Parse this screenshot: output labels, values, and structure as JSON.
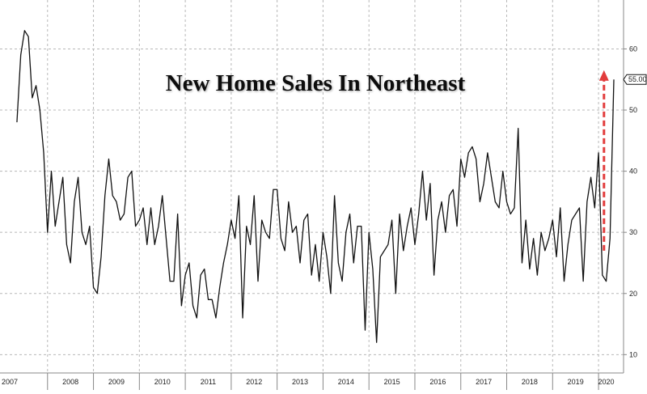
{
  "chart_data": {
    "type": "line",
    "title": "New Home Sales In Northeast",
    "xlabel": "",
    "ylabel": "",
    "ylim": [
      7,
      68
    ],
    "y_ticks": [
      10,
      20,
      30,
      40,
      50,
      60
    ],
    "grid": true,
    "x_start": "2007-01",
    "x_end": "2020-05",
    "year_labels": [
      "2007",
      "2008",
      "2009",
      "2010",
      "2011",
      "2012",
      "2013",
      "2014",
      "2015",
      "2016",
      "2017",
      "2018",
      "2019",
      "2020"
    ],
    "last_value_label": "55.00",
    "series": [
      {
        "values": [
          48,
          59,
          63,
          62,
          52,
          54,
          50,
          43,
          30,
          40,
          31,
          35,
          39,
          28,
          25,
          35,
          39,
          30,
          28,
          31,
          21,
          20,
          26,
          36,
          42,
          36,
          35,
          32,
          33,
          39,
          40,
          31,
          32,
          34,
          28,
          34,
          28,
          31,
          36,
          29,
          22,
          22,
          33,
          18,
          23,
          25,
          18,
          16,
          23,
          24,
          19,
          19,
          16,
          21,
          25,
          28,
          32,
          29,
          36,
          16,
          31,
          28,
          36,
          22,
          32,
          30,
          29,
          37,
          37,
          29,
          27,
          35,
          30,
          31,
          25,
          32,
          33,
          23,
          28,
          22,
          30,
          26,
          20,
          36,
          25,
          22,
          30,
          33,
          25,
          31,
          31,
          14,
          30,
          24,
          12,
          26,
          27,
          28,
          32,
          20,
          33,
          27,
          31,
          34,
          28,
          33,
          40,
          32,
          38,
          23,
          32,
          35,
          30,
          36,
          37,
          31,
          42,
          39,
          43,
          44,
          42,
          35,
          38,
          43,
          39,
          35,
          34,
          40,
          35,
          33,
          34,
          47,
          25,
          32,
          24,
          29,
          23,
          30,
          27,
          29,
          32,
          26,
          34,
          22,
          28,
          32,
          33,
          34,
          22,
          35,
          39,
          34,
          43,
          23,
          22,
          29,
          55
        ]
      }
    ],
    "annotation": {
      "type": "dashed-arrow",
      "color": "#e23c3c",
      "from_value": 27,
      "to_value": 56
    }
  }
}
